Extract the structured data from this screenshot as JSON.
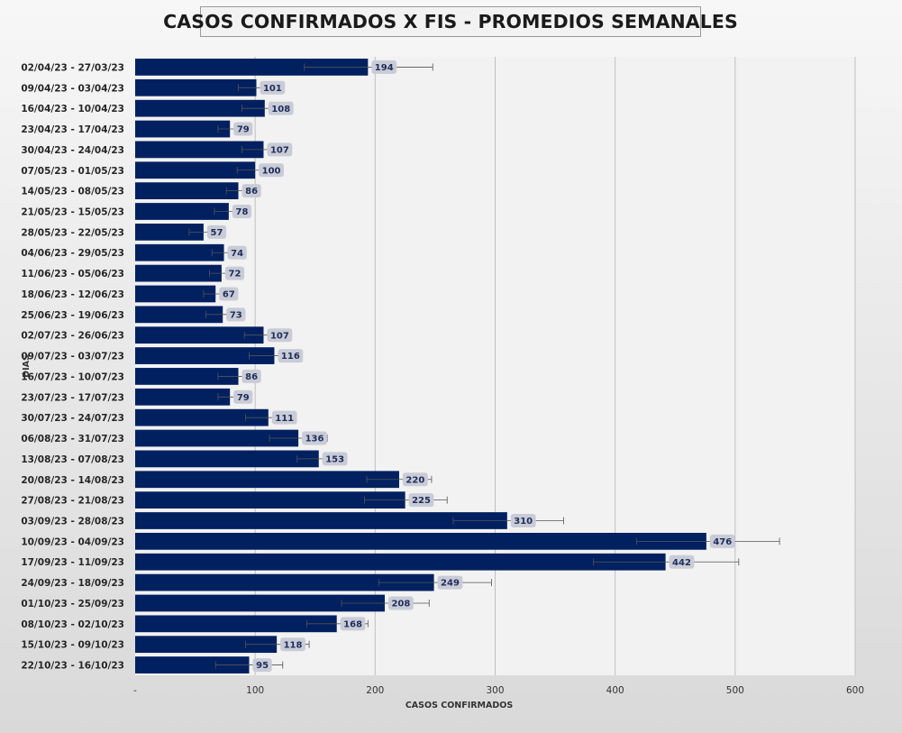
{
  "colors": {
    "bar": "#002060",
    "plot_background": "#f2f2f2",
    "gridline": "#bfbfbf",
    "label_background": "#c9ccd6",
    "error_bar": "#555555"
  },
  "chart_data": {
    "type": "bar",
    "orientation": "horizontal",
    "title": "CASOS CONFIRMADOS X FIS - PROMEDIOS SEMANALES",
    "xlabel": "CASOS CONFIRMADOS",
    "ylabel": "DIAS",
    "xlim": [
      0,
      600
    ],
    "x_ticks": [
      0,
      100,
      200,
      300,
      400,
      500,
      600
    ],
    "x_tick_labels": [
      "-",
      "100",
      "200",
      "300",
      "400",
      "500",
      "600"
    ],
    "grid": "vertical",
    "legend": "none",
    "categories": [
      "02/04/23 - 27/03/23",
      "09/04/23 - 03/04/23",
      "16/04/23 - 10/04/23",
      "23/04/23 - 17/04/23",
      "30/04/23 - 24/04/23",
      "07/05/23 - 01/05/23",
      "14/05/23 - 08/05/23",
      "21/05/23 - 15/05/23",
      "28/05/23 - 22/05/23",
      "04/06/23 - 29/05/23",
      "11/06/23 - 05/06/23",
      "18/06/23 - 12/06/23",
      "25/06/23 - 19/06/23",
      "02/07/23 - 26/06/23",
      "09/07/23 - 03/07/23",
      "16/07/23 - 10/07/23",
      "23/07/23 - 17/07/23",
      "30/07/23 - 24/07/23",
      "06/08/23 - 31/07/23",
      "13/08/23 - 07/08/23",
      "20/08/23 - 14/08/23",
      "27/08/23 - 21/08/23",
      "03/09/23 - 28/08/23",
      "10/09/23 - 04/09/23",
      "17/09/23 - 11/09/23",
      "24/09/23 - 18/09/23",
      "01/10/23 - 25/09/23",
      "08/10/23 - 02/10/23",
      "15/10/23 - 09/10/23",
      "22/10/23 - 16/10/23"
    ],
    "values": [
      194,
      101,
      108,
      79,
      107,
      100,
      86,
      78,
      57,
      74,
      72,
      67,
      73,
      107,
      116,
      86,
      79,
      111,
      136,
      153,
      220,
      225,
      310,
      476,
      442,
      249,
      208,
      168,
      118,
      95
    ],
    "error_low": [
      141,
      86,
      89,
      69,
      89,
      85,
      76,
      66,
      45,
      64,
      62,
      57,
      59,
      91,
      95,
      69,
      69,
      92,
      112,
      135,
      193,
      191,
      265,
      418,
      382,
      203,
      172,
      143,
      92,
      67
    ],
    "error_high": [
      248,
      116,
      127,
      89,
      126,
      116,
      96,
      90,
      69,
      84,
      82,
      77,
      87,
      123,
      137,
      103,
      89,
      130,
      160,
      171,
      247,
      260,
      357,
      537,
      503,
      297,
      245,
      194,
      145,
      123
    ]
  }
}
